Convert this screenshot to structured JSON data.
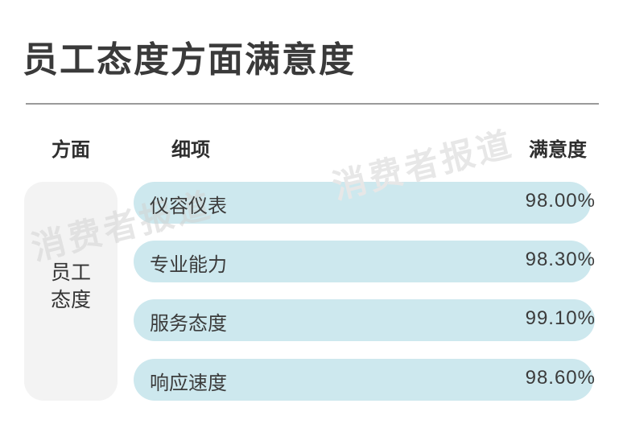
{
  "title": "员工态度方面满意度",
  "headers": {
    "aspect": "方面",
    "item": "细项",
    "satisfaction": "满意度"
  },
  "watermark": "消费者报道",
  "aspect": {
    "line1": "员工",
    "line2": "态度"
  },
  "colors": {
    "bar": "#cde8ee",
    "aspect_bg": "#f3f3f3",
    "text": "#333333"
  },
  "chart_data": {
    "type": "bar",
    "orientation": "horizontal",
    "categories": [
      "仪容仪表",
      "专业能力",
      "服务态度",
      "响应速度"
    ],
    "values": [
      98.0,
      98.3,
      99.1,
      98.6
    ],
    "value_labels": [
      "98.00%",
      "98.30%",
      "99.10%",
      "98.60%"
    ],
    "unit": "%",
    "xlim": [
      0,
      100
    ]
  }
}
